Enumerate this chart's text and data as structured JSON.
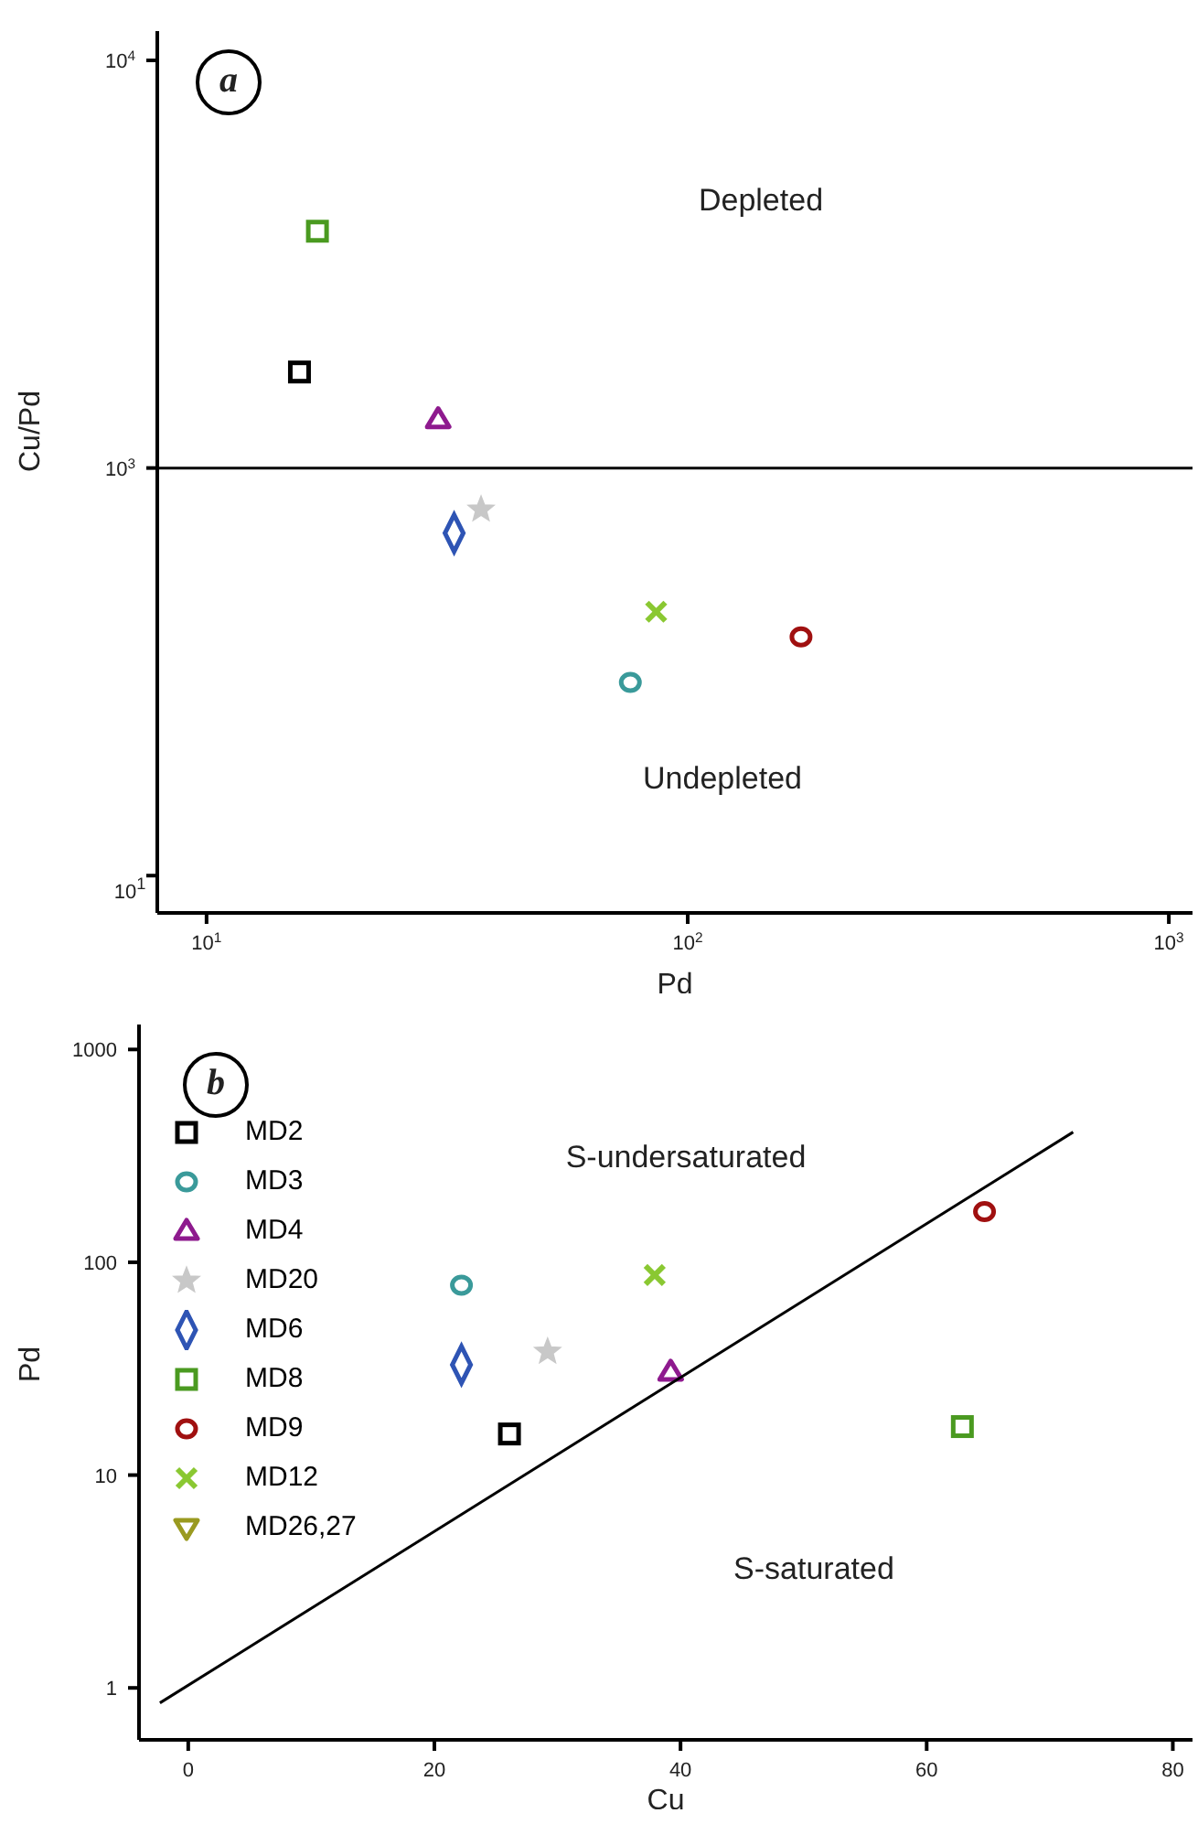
{
  "chart_data": [
    {
      "type": "scatter",
      "xlabel": "Pd",
      "ylabel": "Cu/Pd",
      "log": "xy",
      "xlim": [
        7.9,
        1120
      ],
      "ylim": [
        81,
        11800
      ],
      "xticks": [
        {
          "value": 10,
          "label": "10$^{1}$"
        },
        {
          "value": 100,
          "label": "10$^{2}$"
        },
        {
          "value": 1000,
          "label": "10$^{3}$"
        }
      ],
      "yticks": [
        {
          "value": 100,
          "label": null
        },
        {
          "value": 1000,
          "label": "10$^{3}$"
        },
        {
          "value": 10000,
          "label": "10$^{4}$"
        }
      ],
      "grid": false,
      "legend": false,
      "ref_lines": [
        {
          "axis": "y",
          "value": 1000,
          "color": "#000000"
        }
      ],
      "annotations": [
        "a",
        "Depleted",
        "Undepleted",
        "10$^{1}$"
      ],
      "series": [
        {
          "color": "#000000",
          "marker": "square",
          "x": [
            15.6
          ],
          "values": [
            1720
          ]
        },
        {
          "color": "#3a9a9a",
          "marker": "circle",
          "x": [
            76
          ],
          "values": [
            298
          ]
        },
        {
          "color": "#8e1a8e",
          "marker": "triangle",
          "x": [
            30.3
          ],
          "values": [
            1315
          ]
        },
        {
          "color": "#c8c8c8",
          "marker": "star",
          "x": [
            37.2
          ],
          "values": [
            791
          ]
        },
        {
          "color": "#2e54b4",
          "marker": "diamond",
          "x": [
            32.7
          ],
          "values": [
            692
          ]
        },
        {
          "color": "#4a9a20",
          "marker": "square",
          "x": [
            17
          ],
          "values": [
            3810
          ]
        },
        {
          "color": "#a01010",
          "marker": "circle",
          "x": [
            172
          ],
          "values": [
            385
          ]
        },
        {
          "color": "#8ac832",
          "marker": "cross",
          "x": [
            86
          ],
          "values": [
            444
          ]
        }
      ]
    },
    {
      "type": "scatter",
      "xlabel": "Cu",
      "ylabel": "Pd",
      "log": "y",
      "xlim": [
        -4,
        81.6
      ],
      "ylim": [
        0.57,
        1310
      ],
      "xticks": [
        0,
        20,
        40,
        60,
        80
      ],
      "yticks": [
        1,
        10,
        100,
        1000
      ],
      "grid": false,
      "legend": "top left",
      "annotations": [
        "b",
        "S-undersaturated",
        "S-saturated"
      ],
      "series": [
        {
          "name": "MD2",
          "color": "#000000",
          "marker": "square",
          "x": [
            26.1
          ],
          "values": [
            15.6
          ]
        },
        {
          "name": "MD3",
          "color": "#3a9a9a",
          "marker": "circle",
          "x": [
            22.2
          ],
          "values": [
            78
          ]
        },
        {
          "name": "MD4",
          "color": "#8e1a8e",
          "marker": "triangle",
          "x": [
            39.2
          ],
          "values": [
            30.5
          ]
        },
        {
          "name": "MD20",
          "color": "#c8c8c8",
          "marker": "star",
          "x": [
            29.2
          ],
          "values": [
            38
          ]
        },
        {
          "name": "MD6",
          "color": "#2e54b4",
          "marker": "diamond",
          "x": [
            22.2
          ],
          "values": [
            33
          ]
        },
        {
          "name": "MD8",
          "color": "#4a9a20",
          "marker": "square",
          "x": [
            62.9
          ],
          "values": [
            16.9
          ]
        },
        {
          "name": "MD9",
          "color": "#a01010",
          "marker": "circle",
          "x": [
            64.7
          ],
          "values": [
            173
          ]
        },
        {
          "name": "MD12",
          "color": "#8ac832",
          "marker": "cross",
          "x": [
            37.9
          ],
          "values": [
            87
          ]
        },
        {
          "name": "MD26,27",
          "color": "#9a9a20",
          "marker": "triangle-down"
        },
        {
          "type": "line",
          "color": "#000000",
          "x": [
            -2.3,
            71.9
          ],
          "values": [
            0.85,
            409
          ]
        }
      ]
    }
  ]
}
